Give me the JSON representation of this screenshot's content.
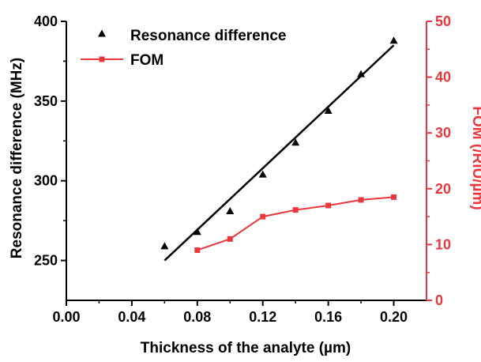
{
  "chart_data": {
    "type": "line",
    "xlabel": "Thickness of the analyte (µm)",
    "ylabel_left": "Resonance difference (MHz)",
    "ylabel_right": "FOM (/RIU/µm)",
    "xlim": [
      0.0,
      0.22
    ],
    "ylim_left": [
      225,
      400
    ],
    "ylim_right": [
      0,
      50
    ],
    "x_ticks": [
      0.0,
      0.04,
      0.08,
      0.12,
      0.16,
      0.2
    ],
    "x_tick_labels": [
      "0.00",
      "0.04",
      "0.08",
      "0.12",
      "0.16",
      "0.20"
    ],
    "y_left_ticks": [
      250,
      300,
      350,
      400
    ],
    "y_left_tick_labels": [
      "250",
      "300",
      "350",
      "400"
    ],
    "y_right_ticks": [
      0,
      10,
      20,
      30,
      40,
      50
    ],
    "y_right_tick_labels": [
      "0",
      "10",
      "20",
      "30",
      "40",
      "50"
    ],
    "grid": false,
    "legend_position": "top-left",
    "series": [
      {
        "name": "Resonance difference",
        "axis": "left",
        "marker": "triangle",
        "color": "#000000",
        "x": [
          0.06,
          0.08,
          0.1,
          0.12,
          0.14,
          0.16,
          0.18,
          0.2
        ],
        "y": [
          259,
          268,
          281,
          304,
          324,
          344,
          367,
          388
        ]
      },
      {
        "name": "FOM",
        "axis": "right",
        "marker": "square",
        "color": "#e8383d",
        "x": [
          0.08,
          0.1,
          0.12,
          0.14,
          0.16,
          0.18,
          0.2
        ],
        "y": [
          9.0,
          11.0,
          15.0,
          16.2,
          17.0,
          18.0,
          18.5
        ]
      }
    ],
    "fit_line": {
      "series": "Resonance difference",
      "color": "#000000",
      "x": [
        0.06,
        0.2
      ],
      "y": [
        250,
        385
      ]
    }
  }
}
